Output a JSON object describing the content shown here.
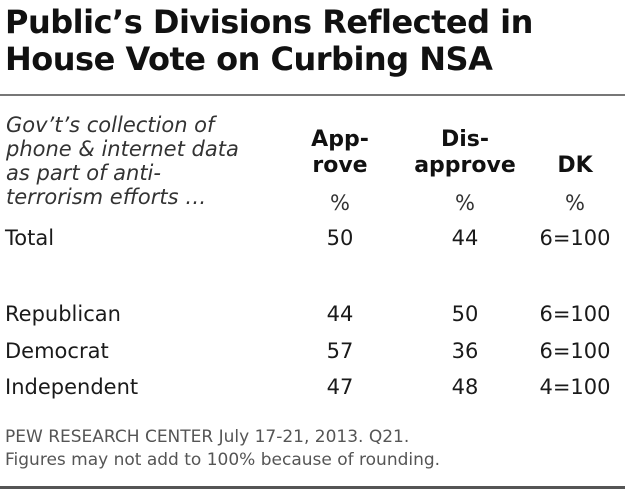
{
  "title": {
    "line1": "Public’s Divisions Reflected in",
    "line2": "House Vote on Curbing NSA"
  },
  "stub": {
    "lines": [
      "Gov’t’s collection of",
      "phone & internet data",
      "as part of anti-",
      "terrorism efforts …"
    ]
  },
  "columns": [
    {
      "line1": "App-",
      "line2": "rove",
      "unit": "%"
    },
    {
      "line1": "Dis-",
      "line2": "approve",
      "unit": "%"
    },
    {
      "line1": "",
      "line2": "DK",
      "unit": "%"
    }
  ],
  "chart_data": {
    "type": "table",
    "title": "Public’s Divisions Reflected in House Vote on Curbing NSA",
    "columns": [
      "Approve",
      "Disapprove",
      "DK"
    ],
    "rows": [
      {
        "label": "Total",
        "values": [
          "50",
          "44",
          "6=100"
        ]
      },
      {
        "label": "Republican",
        "values": [
          "44",
          "50",
          "6=100"
        ]
      },
      {
        "label": "Democrat",
        "values": [
          "57",
          "36",
          "6=100"
        ]
      },
      {
        "label": "Independent",
        "values": [
          "47",
          "48",
          "4=100"
        ]
      }
    ]
  },
  "source": {
    "line1": "PEW RESEARCH  CENTER July 17-21, 2013. Q21.",
    "line2": "Figures may not add to 100% because of rounding."
  }
}
